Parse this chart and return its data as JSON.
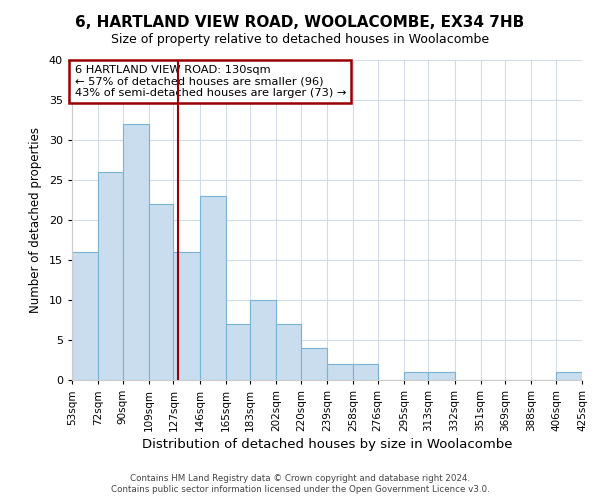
{
  "title": "6, HARTLAND VIEW ROAD, WOOLACOMBE, EX34 7HB",
  "subtitle": "Size of property relative to detached houses in Woolacombe",
  "xlabel": "Distribution of detached houses by size in Woolacombe",
  "ylabel": "Number of detached properties",
  "footnote1": "Contains HM Land Registry data © Crown copyright and database right 2024.",
  "footnote2": "Contains public sector information licensed under the Open Government Licence v3.0.",
  "bar_edges": [
    53,
    72,
    90,
    109,
    127,
    146,
    165,
    183,
    202,
    220,
    239,
    258,
    276,
    295,
    313,
    332,
    351,
    369,
    388,
    406,
    425
  ],
  "bar_heights": [
    16,
    26,
    32,
    22,
    16,
    23,
    7,
    10,
    7,
    4,
    2,
    2,
    0,
    1,
    1,
    0,
    0,
    0,
    0,
    1
  ],
  "bar_color": "#c9ddef",
  "bar_edge_color": "#7ab4d4",
  "property_size": 130,
  "vline_color": "#990000",
  "annotation_line1": "6 HARTLAND VIEW ROAD: 130sqm",
  "annotation_line2": "← 57% of detached houses are smaller (96)",
  "annotation_line3": "43% of semi-detached houses are larger (73) →",
  "annotation_box_color": "#ffffff",
  "annotation_box_edge_color": "#990000",
  "ylim": [
    0,
    40
  ],
  "yticks": [
    0,
    5,
    10,
    15,
    20,
    25,
    30,
    35,
    40
  ],
  "background_color": "#ffffff",
  "grid_color": "#d0dce8",
  "tick_label_fontsize": 7.5,
  "xlabel_fontsize": 9.5,
  "ylabel_fontsize": 8.5,
  "title_fontsize": 11,
  "subtitle_fontsize": 9
}
